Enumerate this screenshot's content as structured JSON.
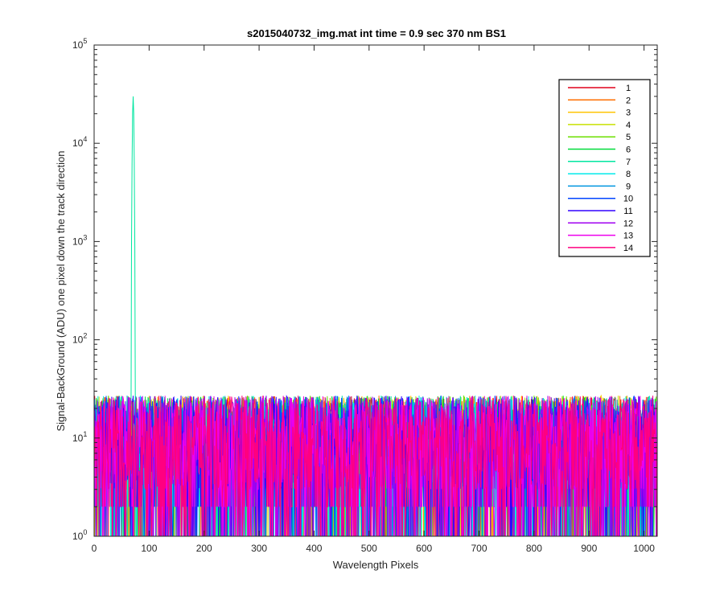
{
  "chart_data": {
    "type": "line",
    "title": "s2015040732_img.mat int time = 0.9 sec  370 nm BS1",
    "xlabel": "Wavelength Pixels",
    "ylabel": "Signal-BackGround (ADU) one pixel down the track direction",
    "xlim": [
      0,
      1024
    ],
    "ylim": [
      1,
      100000
    ],
    "yscale": "log",
    "grid": false,
    "legend_position": "top-right",
    "x_ticks": [
      0,
      100,
      200,
      300,
      400,
      500,
      600,
      700,
      800,
      900,
      1000
    ],
    "y_ticks": [
      {
        "value": 1,
        "base": "10",
        "exp": "0"
      },
      {
        "value": 10,
        "base": "10",
        "exp": "1"
      },
      {
        "value": 100,
        "base": "10",
        "exp": "2"
      },
      {
        "value": 1000,
        "base": "10",
        "exp": "3"
      },
      {
        "value": 10000,
        "base": "10",
        "exp": "4"
      },
      {
        "value": 100000,
        "base": "10",
        "exp": "5"
      }
    ],
    "noise_level_range": [
      1,
      35
    ],
    "peak": {
      "series": "7",
      "x_range": [
        68,
        74
      ],
      "y_max": 30000
    },
    "series": [
      {
        "name": "1",
        "color": "#e0001a"
      },
      {
        "name": "2",
        "color": "#ff6f00"
      },
      {
        "name": "3",
        "color": "#ffc400"
      },
      {
        "name": "4",
        "color": "#c8e000"
      },
      {
        "name": "5",
        "color": "#6bdf00"
      },
      {
        "name": "6",
        "color": "#00dc3a"
      },
      {
        "name": "7",
        "color": "#00e6a0"
      },
      {
        "name": "8",
        "color": "#00eaea"
      },
      {
        "name": "9",
        "color": "#0095e0"
      },
      {
        "name": "10",
        "color": "#0044ff"
      },
      {
        "name": "11",
        "color": "#3000ff"
      },
      {
        "name": "12",
        "color": "#a000f0"
      },
      {
        "name": "13",
        "color": "#ee00ee"
      },
      {
        "name": "14",
        "color": "#ff0080"
      }
    ]
  }
}
